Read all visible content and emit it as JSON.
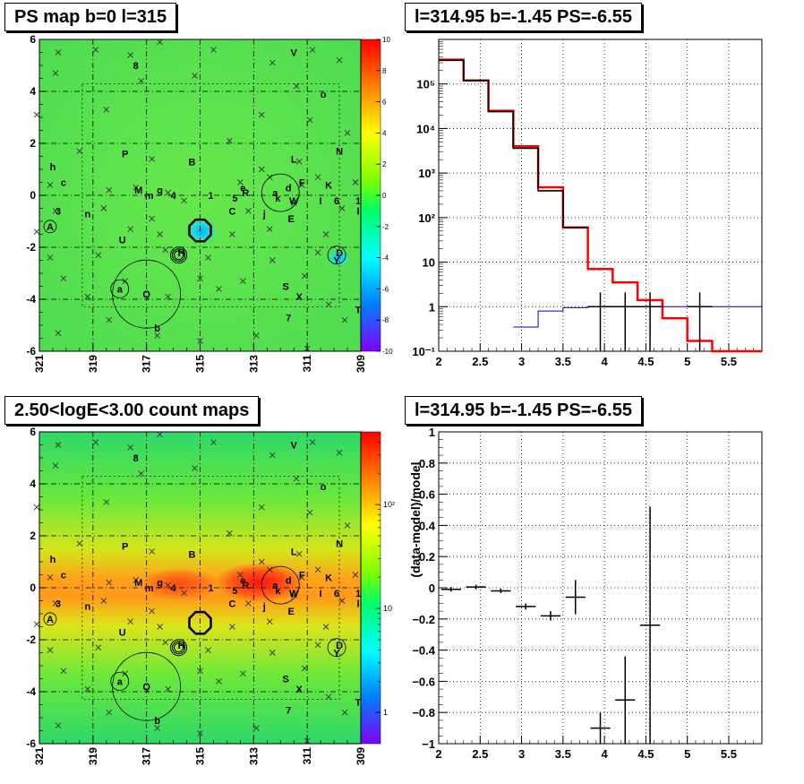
{
  "panels": {
    "tl": {
      "title": "PS map b=0 l=315"
    },
    "tr": {
      "title": "l=314.95 b=-1.45 PS=-6.55"
    },
    "bl": {
      "title": "2.50<logE<3.00 count maps"
    },
    "br": {
      "title": "l=314.95 b=-1.45 PS=-6.55",
      "ylabel": "(data-model)/model"
    }
  },
  "sky_axes": {
    "x_ticks": [
      "321",
      "319",
      "317",
      "315",
      "313",
      "311",
      "309"
    ],
    "y_ticks": [
      "6",
      "4",
      "2",
      "0",
      "-2",
      "-4",
      "-6"
    ]
  },
  "colorbar_ps": {
    "ticks": [
      "10",
      "8",
      "6",
      "4",
      "2",
      "0",
      "-2",
      "-4",
      "-6",
      "-8",
      "-10"
    ]
  },
  "colorbar_counts": {
    "ticks": [
      "10²",
      "10",
      "1"
    ]
  },
  "source_labels": [
    "8",
    "V",
    "o",
    "N",
    "h",
    "P",
    "B",
    "L",
    "c",
    "M",
    "g",
    "m",
    "4",
    "1",
    "5",
    "e",
    "R",
    "a",
    "d",
    "F",
    "K",
    "k",
    "W",
    "I",
    "6",
    "1",
    "l",
    "3",
    "n",
    "C",
    "j",
    "E",
    "A",
    "U",
    "H",
    "D",
    "Y",
    "a",
    "Q",
    "S",
    "X",
    "7",
    "b",
    "T",
    "f",
    "J"
  ],
  "chart_data": [
    {
      "type": "line",
      "title": "l=314.95 b=-1.45 PS=-6.55",
      "xlabel": "",
      "ylabel": "",
      "xlim": [
        2,
        5.9
      ],
      "ylim": [
        0.1,
        1000000
      ],
      "y_log": true,
      "x_ticks": [
        "2",
        "2.5",
        "3",
        "3.5",
        "4",
        "4.5",
        "5",
        "5.5"
      ],
      "y_ticks": [
        "10⁻¹",
        "1",
        "10",
        "10²",
        "10³",
        "10⁴",
        "10⁵"
      ],
      "grid": true,
      "series": [
        {
          "color": "#ff0000",
          "edges": [
            2.0,
            2.3,
            2.6,
            2.9,
            3.2,
            3.5,
            3.8,
            4.1,
            4.4,
            4.7,
            5.0,
            5.3,
            5.9
          ],
          "values": [
            350000,
            120000,
            25000,
            4000,
            480,
            60,
            7,
            3.5,
            1.4,
            0.55,
            0.17,
            0.1
          ]
        },
        {
          "color": "#000000",
          "edges": [
            2.0,
            2.3,
            2.6,
            2.9,
            3.2,
            3.5,
            3.8,
            4.1,
            4.4,
            4.7,
            5.0,
            5.3,
            5.9
          ],
          "values": [
            340000,
            120000,
            24000,
            3600,
            400,
            60,
            null,
            null,
            null,
            null,
            null,
            null
          ]
        },
        {
          "color": "#0000cc",
          "edges": [
            2.0,
            2.3,
            2.6,
            2.9,
            3.2,
            3.5,
            3.8,
            4.1,
            4.4,
            4.7,
            5.0,
            5.3,
            5.9
          ],
          "values": [
            null,
            null,
            null,
            0.35,
            0.8,
            0.95,
            1.0,
            1.0,
            1.0,
            1.0,
            1.0,
            1.0
          ]
        }
      ],
      "points": [
        {
          "x": 3.95,
          "y": 1,
          "xerr": 0.15,
          "ylo": 0.1,
          "yhi": 2.1
        },
        {
          "x": 4.25,
          "y": 1,
          "xerr": 0.15,
          "ylo": 0.1,
          "yhi": 2.1
        },
        {
          "x": 4.55,
          "y": 1,
          "xerr": 0.15,
          "ylo": 0.1,
          "yhi": 2.1
        },
        {
          "x": 5.15,
          "y": 1,
          "xerr": 0.15,
          "ylo": 0.1,
          "yhi": 2.1
        }
      ]
    },
    {
      "type": "scatter",
      "title": "l=314.95 b=-1.45 PS=-6.55",
      "xlabel": "",
      "ylabel": "(data-model)/model",
      "xlim": [
        2,
        5.9
      ],
      "ylim": [
        -1,
        1
      ],
      "x_ticks": [
        "2",
        "2.5",
        "3",
        "3.5",
        "4",
        "4.5",
        "5",
        "5.5"
      ],
      "y_ticks": [
        "1",
        "0.8",
        "0.6",
        "0.4",
        "0.2",
        "0",
        "−0.2",
        "−0.4",
        "−0.6",
        "−0.8",
        "−1"
      ],
      "grid": true,
      "points": [
        {
          "x": 2.15,
          "y": -0.01,
          "xerr": 0.12,
          "ylo": -0.025,
          "yhi": 0.005
        },
        {
          "x": 2.45,
          "y": 0.005,
          "xerr": 0.12,
          "ylo": -0.01,
          "yhi": 0.02
        },
        {
          "x": 2.75,
          "y": -0.02,
          "xerr": 0.12,
          "ylo": -0.035,
          "yhi": -0.005
        },
        {
          "x": 3.05,
          "y": -0.12,
          "xerr": 0.12,
          "ylo": -0.14,
          "yhi": -0.1
        },
        {
          "x": 3.35,
          "y": -0.18,
          "xerr": 0.12,
          "ylo": -0.21,
          "yhi": -0.15
        },
        {
          "x": 3.65,
          "y": -0.06,
          "xerr": 0.12,
          "ylo": -0.17,
          "yhi": 0.05
        },
        {
          "x": 3.95,
          "y": -0.9,
          "xerr": 0.12,
          "ylo": -1.0,
          "yhi": -0.8
        },
        {
          "x": 4.25,
          "y": -0.72,
          "xerr": 0.12,
          "ylo": -1.0,
          "yhi": -0.44
        },
        {
          "x": 4.55,
          "y": -0.24,
          "xerr": 0.12,
          "ylo": -1.0,
          "yhi": 0.52
        }
      ]
    }
  ]
}
